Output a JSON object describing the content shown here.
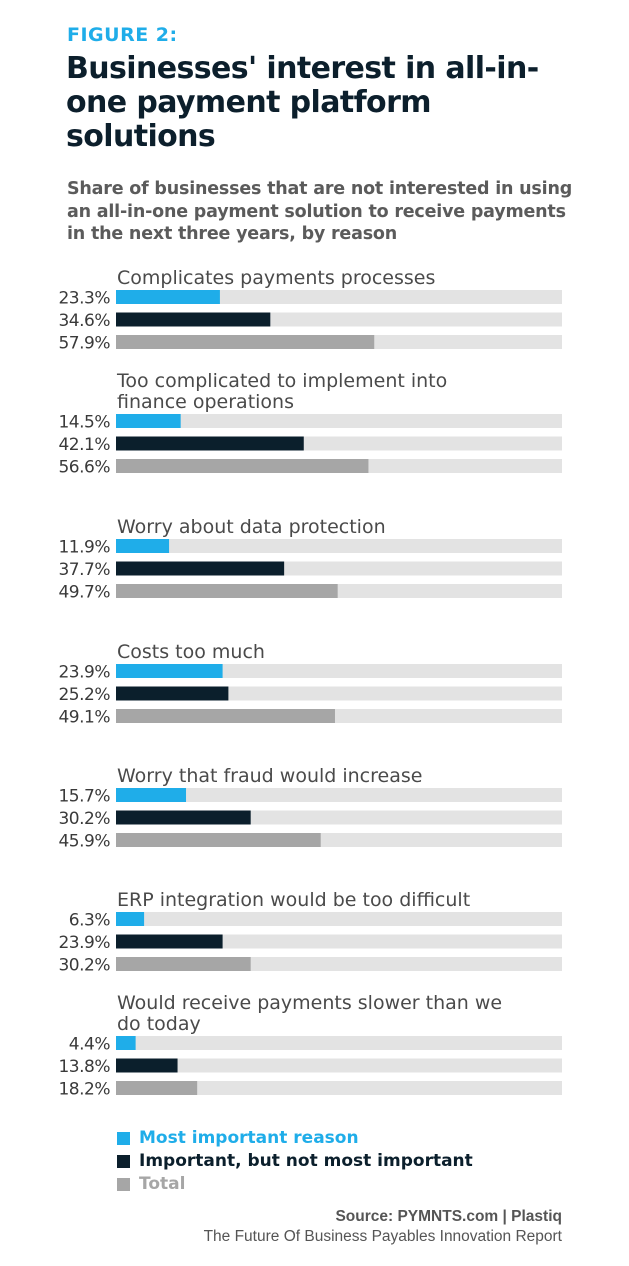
{
  "header": {
    "kicker": "FIGURE 2:",
    "title": "Businesses' interest in all-in-one payment platform solutions",
    "subtitle": "Share of businesses that are not interested in using an all-in-one payment solution to receive payments in the next three years, by reason"
  },
  "colors": {
    "most_important": "#1fade9",
    "important_not_most": "#0b1f2c",
    "total": "#a6a6a6",
    "track": "#e3e3e3"
  },
  "chart_data": {
    "type": "bar",
    "orientation": "horizontal",
    "title": "Businesses' interest in all-in-one payment platform solutions",
    "subtitle": "Share of businesses that are not interested in using an all-in-one payment solution to receive payments in the next three years, by reason",
    "xlabel": "",
    "ylabel": "",
    "xlim": [
      0,
      100
    ],
    "unit": "%",
    "grid": false,
    "legend_position": "bottom-left",
    "categories": [
      [
        "Complicates payments processes"
      ],
      [
        "Too complicated to implement into",
        "finance operations"
      ],
      [
        "Worry about data protection"
      ],
      [
        "Costs too much"
      ],
      [
        "Worry that fraud would increase"
      ],
      [
        "ERP integration would be too difficult"
      ],
      [
        "Would receive payments slower than we",
        "do today"
      ]
    ],
    "series": [
      {
        "name": "Most important reason",
        "color": "#1fade9",
        "values": [
          23.3,
          14.5,
          11.9,
          23.9,
          15.7,
          6.3,
          4.4
        ],
        "labels": [
          "23.3%",
          "14.5%",
          "11.9%",
          "23.9%",
          "15.7%",
          "6.3%",
          "4.4%"
        ]
      },
      {
        "name": "Important, but not most important",
        "color": "#0b1f2c",
        "values": [
          34.6,
          42.1,
          37.7,
          25.2,
          30.2,
          23.9,
          13.8
        ],
        "labels": [
          "34.6%",
          "42.1%",
          "37.7%",
          "25.2%",
          "30.2%",
          "23.9%",
          "13.8%"
        ]
      },
      {
        "name": "Total",
        "color": "#a6a6a6",
        "values": [
          57.9,
          56.6,
          49.7,
          49.1,
          45.9,
          30.2,
          18.2
        ],
        "labels": [
          "57.9%",
          "56.6%",
          "49.7%",
          "49.1%",
          "45.9%",
          "30.2%",
          "18.2%"
        ]
      }
    ]
  },
  "legend": {
    "items": [
      {
        "label": "Most important reason",
        "color": "#1fade9"
      },
      {
        "label": "Important, but not most important",
        "color": "#0b1f2c"
      },
      {
        "label": "Total",
        "color": "#a6a6a6"
      }
    ]
  },
  "footer": {
    "source": "Source: PYMNTS.com  |  Plastiq",
    "report": "The Future Of Business Payables Innovation Report"
  }
}
